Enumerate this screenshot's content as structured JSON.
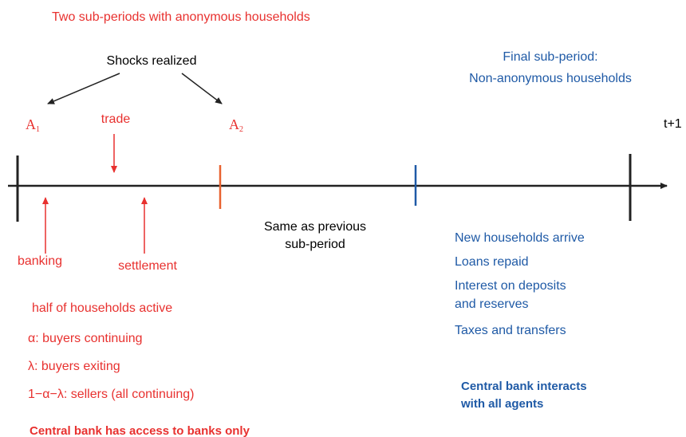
{
  "header": {
    "title": "Two sub-periods with anonymous households"
  },
  "shocks": "Shocks realized",
  "final_period": {
    "lines": [
      "Final sub-period:",
      "Non-anonymous households"
    ]
  },
  "timeline": {
    "a1": {
      "label": "A",
      "sub": "1"
    },
    "a2": {
      "label": "A",
      "sub": "2"
    },
    "trade": "trade",
    "end": "t+1",
    "banking": "banking",
    "settlement": "settlement",
    "same": [
      "Same as previous",
      "sub-period"
    ]
  },
  "anonymous_notes": [
    "half of  households active",
    "α:  buyers continuing",
    "λ:  buyers exiting",
    "1−α−λ:  sellers (all continuing)"
  ],
  "anonymous_footer": "Central bank has access to banks only",
  "final_notes": [
    "New households arrive",
    "Loans repaid",
    "Interest on deposits",
    "and reserves",
    "Taxes and transfers"
  ],
  "final_footer": [
    "Central bank interacts",
    "with all agents"
  ]
}
